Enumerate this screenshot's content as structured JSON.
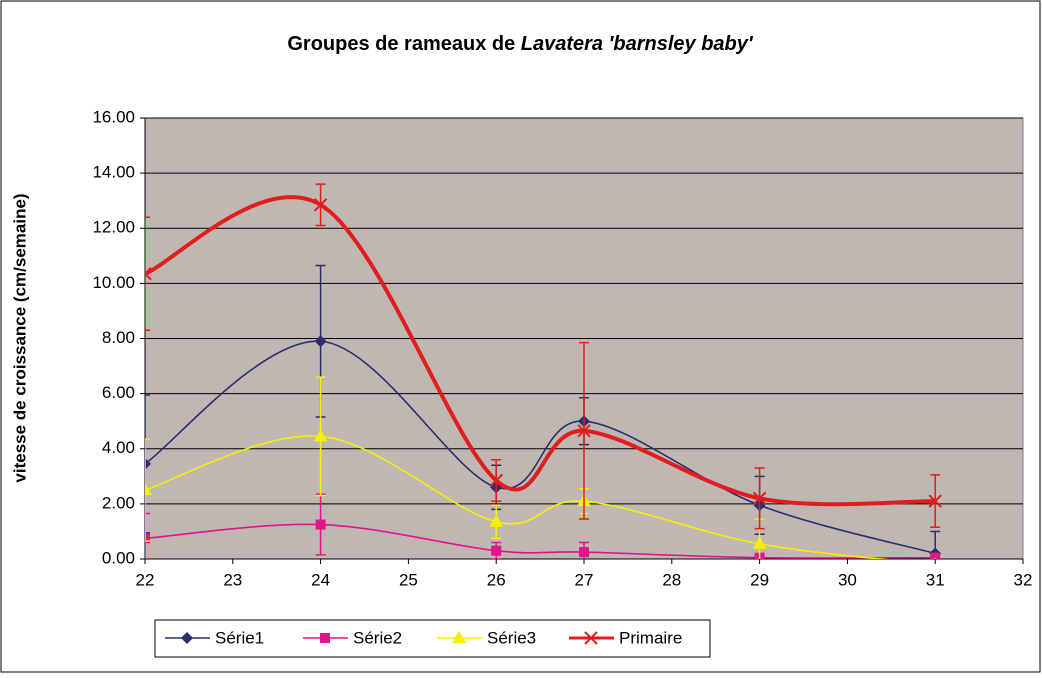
{
  "chart_data": {
    "type": "line",
    "title": "Groupes de rameaux de ",
    "title_italic": "Lavatera 'barnsley baby'",
    "ylabel": "vitesse de croissance (cm/semaine)",
    "x": [
      22,
      24,
      26,
      27,
      29,
      31
    ],
    "xlim": [
      22,
      32
    ],
    "xticks": [
      22,
      23,
      24,
      25,
      26,
      27,
      28,
      29,
      30,
      31,
      32
    ],
    "ylim": [
      0,
      16
    ],
    "yticks": [
      {
        "value": 0,
        "label": "0.00"
      },
      {
        "value": 2,
        "label": "2.00"
      },
      {
        "value": 4,
        "label": "4.00"
      },
      {
        "value": 6,
        "label": "6.00"
      },
      {
        "value": 8,
        "label": "8.00"
      },
      {
        "value": 10,
        "label": "10.00"
      },
      {
        "value": 12,
        "label": "12.00"
      },
      {
        "value": 14,
        "label": "14.00"
      },
      {
        "value": 16,
        "label": "16.00"
      }
    ],
    "grid": true,
    "smooth": true,
    "legend": "bottom",
    "series": [
      {
        "name": "Série1",
        "color": "#2b2f6e",
        "marker": "diamond",
        "values": [
          3.45,
          7.9,
          2.6,
          5.0,
          1.95,
          0.2
        ],
        "errors": [
          2.5,
          2.75,
          0.8,
          0.85,
          1.05,
          0.8
        ]
      },
      {
        "name": "Série2",
        "color": "#e0158a",
        "marker": "square",
        "values": [
          0.75,
          1.25,
          0.3,
          0.25,
          0.05,
          0.05
        ],
        "errors": [
          0.9,
          1.1,
          0.3,
          0.35,
          0.1,
          0.1
        ]
      },
      {
        "name": "Série3",
        "color": "#f4f000",
        "marker": "triangle",
        "values": [
          2.5,
          4.45,
          1.35,
          2.1,
          0.55,
          -0.2
        ],
        "errors": [
          1.85,
          2.15,
          0.6,
          0.45,
          0.9,
          0
        ]
      },
      {
        "name": "Primaire",
        "color": "#e01e1e",
        "marker": "x",
        "values": [
          10.35,
          12.85,
          2.85,
          4.65,
          2.2,
          2.1
        ],
        "errors": [
          2.05,
          0.75,
          0.75,
          3.2,
          1.1,
          0.95
        ]
      }
    ]
  }
}
